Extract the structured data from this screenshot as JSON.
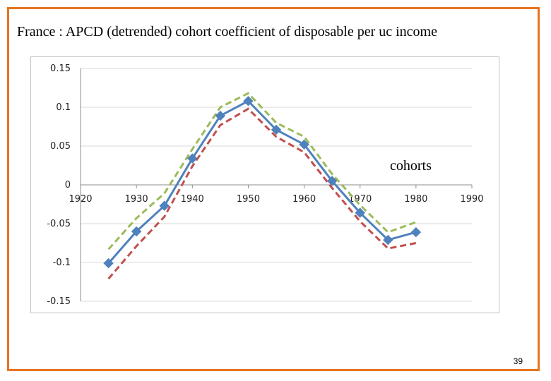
{
  "slide": {
    "title": "France : APCD (detrended) cohort coefficient of disposable per uc income",
    "page_number": "39"
  },
  "colors": {
    "frame": "#e8741e",
    "series_main": "#4f81bd",
    "series_upper": "#9bbb59",
    "series_lower": "#c0504d"
  },
  "chart_data": {
    "type": "line",
    "title": "",
    "xlabel": "",
    "ylabel": "",
    "annotation": "cohorts",
    "xlim": [
      1920,
      1990
    ],
    "ylim": [
      -0.15,
      0.15
    ],
    "x_ticks": [
      1920,
      1930,
      1940,
      1950,
      1960,
      1970,
      1980,
      1990
    ],
    "x_tick_labels": [
      "1920",
      "1930",
      "1940",
      "1950",
      "1960",
      "1970",
      "1980",
      "1990"
    ],
    "y_ticks": [
      0.15,
      0.1,
      0.05,
      0,
      -0.05,
      -0.1,
      -0.15
    ],
    "y_tick_labels": [
      "0.15",
      "0.1",
      "0.05",
      "0",
      "-0.05",
      "-0.1",
      "-0.15"
    ],
    "grid": "horizontal",
    "legend": "none",
    "x": [
      1925,
      1930,
      1935,
      1940,
      1945,
      1950,
      1955,
      1960,
      1965,
      1970,
      1975,
      1980
    ],
    "series": [
      {
        "values": [
          -0.101,
          -0.06,
          -0.027,
          0.034,
          0.089,
          0.108,
          0.071,
          0.052,
          0.005,
          -0.036,
          -0.071,
          -0.061
        ],
        "style": "solid-diamond",
        "color": "#4f81bd"
      },
      {
        "values": [
          -0.083,
          -0.043,
          -0.011,
          0.046,
          0.1,
          0.118,
          0.08,
          0.062,
          0.014,
          -0.026,
          -0.061,
          -0.048
        ],
        "style": "dashed",
        "color": "#9bbb59"
      },
      {
        "values": [
          -0.121,
          -0.079,
          -0.041,
          0.024,
          0.077,
          0.098,
          0.062,
          0.042,
          -0.004,
          -0.047,
          -0.082,
          -0.075
        ],
        "style": "dashed",
        "color": "#c0504d"
      }
    ]
  }
}
